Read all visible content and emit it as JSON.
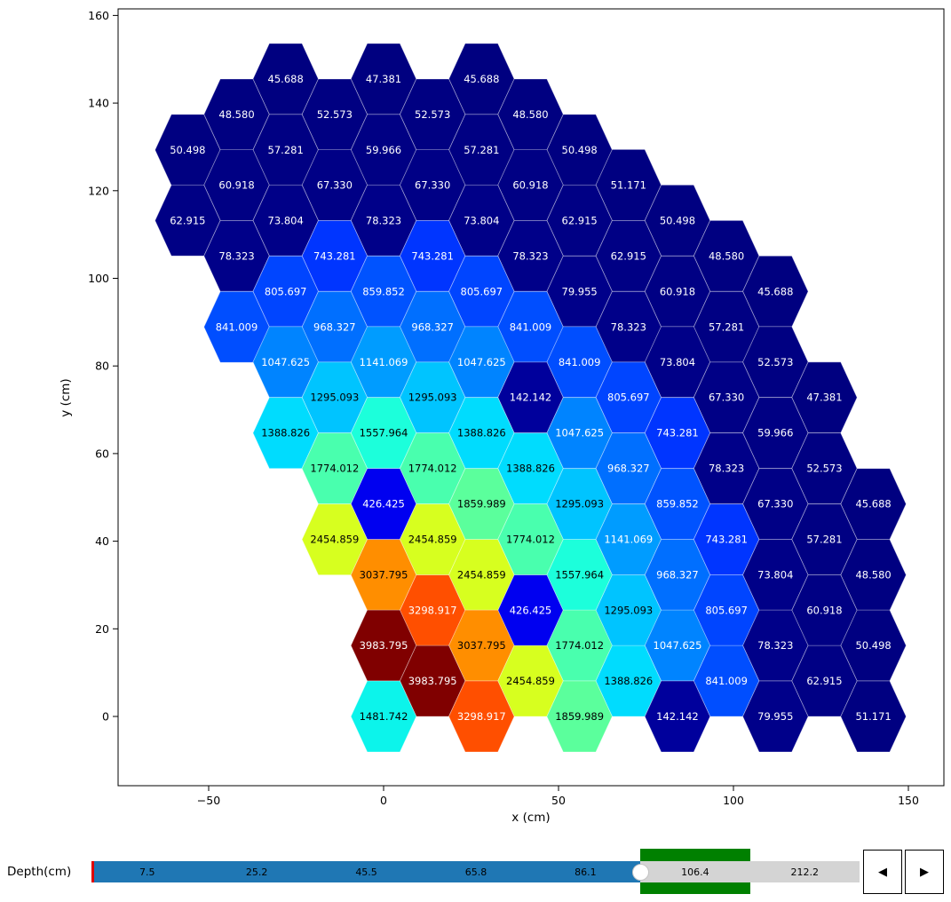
{
  "figure": {
    "xlabel": "x (cm)",
    "ylabel": "y (cm)",
    "x_tick_labels": [
      "−50",
      "0",
      "50",
      "100",
      "150"
    ],
    "x_tick_values": [
      -50,
      0,
      50,
      100,
      150
    ],
    "y_tick_labels": [
      "0",
      "20",
      "40",
      "60",
      "80",
      "100",
      "120",
      "140",
      "160"
    ],
    "y_tick_values": [
      0,
      20,
      40,
      60,
      80,
      100,
      120,
      140,
      160
    ]
  },
  "chart_data": {
    "type": "hexbin",
    "title": "",
    "xlabel": "x (cm)",
    "ylabel": "y (cm)",
    "xlim": [
      -76,
      160.3
    ],
    "ylim": [
      -16.2,
      161.6
    ],
    "grid": false,
    "colormap": "jet",
    "vmin": 45.688,
    "vmax": 3983.795,
    "hex_dx_cm": 14.0,
    "hex_dy_cm": 8.1,
    "palette": {
      "45.688": "#000080",
      "47.381": "#000080",
      "48.580": "#000081",
      "50.498": "#000081",
      "51.171": "#000081",
      "52.573": "#000082",
      "57.281": "#000083",
      "59.966": "#000084",
      "60.918": "#000084",
      "62.915": "#000085",
      "67.330": "#000086",
      "73.804": "#000088",
      "78.323": "#000089",
      "79.955": "#00008a",
      "142.142": "#00009c",
      "426.425": "#0000f0",
      "743.281": "#0035ff",
      "805.697": "#0045ff",
      "841.009": "#004eff",
      "859.852": "#0053ff",
      "968.327": "#006fff",
      "1047.625": "#0084ff",
      "1141.069": "#009cff",
      "1295.093": "#00c4ff",
      "1388.826": "#00dcfe",
      "1481.742": "#0cf4eb",
      "1557.964": "#1cffdb",
      "1774.012": "#49ffae",
      "1859.989": "#5bff9c",
      "2454.859": "#d7ff1f",
      "3037.795": "#ff8e00",
      "3298.917": "#ff4f00",
      "3983.795": "#800000"
    },
    "points": [
      {
        "x": -28,
        "y": 145.5,
        "v": "45.688"
      },
      {
        "x": 0,
        "y": 145.5,
        "v": "47.381"
      },
      {
        "x": 28,
        "y": 145.5,
        "v": "45.688"
      },
      {
        "x": -42,
        "y": 137.4,
        "v": "48.580"
      },
      {
        "x": -14,
        "y": 137.4,
        "v": "52.573"
      },
      {
        "x": 14,
        "y": 137.4,
        "v": "52.573"
      },
      {
        "x": 42,
        "y": 137.4,
        "v": "48.580"
      },
      {
        "x": -56,
        "y": 129.3,
        "v": "50.498"
      },
      {
        "x": -28,
        "y": 129.3,
        "v": "57.281"
      },
      {
        "x": 0,
        "y": 129.3,
        "v": "59.966"
      },
      {
        "x": 28,
        "y": 129.3,
        "v": "57.281"
      },
      {
        "x": 56,
        "y": 129.3,
        "v": "50.498"
      },
      {
        "x": -42,
        "y": 121.3,
        "v": "60.918"
      },
      {
        "x": -14,
        "y": 121.3,
        "v": "67.330"
      },
      {
        "x": 14,
        "y": 121.3,
        "v": "67.330"
      },
      {
        "x": 42,
        "y": 121.3,
        "v": "60.918"
      },
      {
        "x": 70,
        "y": 121.3,
        "v": "51.171"
      },
      {
        "x": -56,
        "y": 113.2,
        "v": "62.915"
      },
      {
        "x": -28,
        "y": 113.2,
        "v": "73.804"
      },
      {
        "x": 0,
        "y": 113.2,
        "v": "78.323"
      },
      {
        "x": 28,
        "y": 113.2,
        "v": "73.804"
      },
      {
        "x": 56,
        "y": 113.2,
        "v": "62.915"
      },
      {
        "x": 84,
        "y": 113.2,
        "v": "50.498"
      },
      {
        "x": -42,
        "y": 105.1,
        "v": "78.323"
      },
      {
        "x": -14,
        "y": 105.1,
        "v": "743.281"
      },
      {
        "x": 14,
        "y": 105.1,
        "v": "743.281"
      },
      {
        "x": 42,
        "y": 105.1,
        "v": "78.323"
      },
      {
        "x": 70,
        "y": 105.1,
        "v": "62.915"
      },
      {
        "x": 98,
        "y": 105.1,
        "v": "48.580"
      },
      {
        "x": -28,
        "y": 97.0,
        "v": "805.697"
      },
      {
        "x": 0,
        "y": 97.0,
        "v": "859.852"
      },
      {
        "x": 28,
        "y": 97.0,
        "v": "805.697"
      },
      {
        "x": 56,
        "y": 97.0,
        "v": "79.955"
      },
      {
        "x": 84,
        "y": 97.0,
        "v": "60.918"
      },
      {
        "x": 112,
        "y": 97.0,
        "v": "45.688"
      },
      {
        "x": -42,
        "y": 88.9,
        "v": "841.009"
      },
      {
        "x": -14,
        "y": 88.9,
        "v": "968.327"
      },
      {
        "x": 14,
        "y": 88.9,
        "v": "968.327"
      },
      {
        "x": 42,
        "y": 88.9,
        "v": "841.009"
      },
      {
        "x": 70,
        "y": 88.9,
        "v": "78.323"
      },
      {
        "x": 98,
        "y": 88.9,
        "v": "57.281"
      },
      {
        "x": -28,
        "y": 80.9,
        "v": "1047.625"
      },
      {
        "x": 0,
        "y": 80.9,
        "v": "1141.069"
      },
      {
        "x": 28,
        "y": 80.9,
        "v": "1047.625"
      },
      {
        "x": 56,
        "y": 80.9,
        "v": "841.009"
      },
      {
        "x": 84,
        "y": 80.9,
        "v": "73.804"
      },
      {
        "x": 112,
        "y": 80.9,
        "v": "52.573"
      },
      {
        "x": -14,
        "y": 72.8,
        "v": "1295.093"
      },
      {
        "x": 14,
        "y": 72.8,
        "v": "1295.093"
      },
      {
        "x": 42,
        "y": 72.8,
        "v": "142.142"
      },
      {
        "x": 70,
        "y": 72.8,
        "v": "805.697"
      },
      {
        "x": 98,
        "y": 72.8,
        "v": "67.330"
      },
      {
        "x": 126,
        "y": 72.8,
        "v": "47.381"
      },
      {
        "x": -28,
        "y": 64.7,
        "v": "1388.826"
      },
      {
        "x": 0,
        "y": 64.7,
        "v": "1557.964"
      },
      {
        "x": 28,
        "y": 64.7,
        "v": "1388.826"
      },
      {
        "x": 56,
        "y": 64.7,
        "v": "1047.625"
      },
      {
        "x": 84,
        "y": 64.7,
        "v": "743.281"
      },
      {
        "x": 112,
        "y": 64.7,
        "v": "59.966"
      },
      {
        "x": -14,
        "y": 56.6,
        "v": "1774.012"
      },
      {
        "x": 14,
        "y": 56.6,
        "v": "1774.012"
      },
      {
        "x": 42,
        "y": 56.6,
        "v": "1388.826"
      },
      {
        "x": 70,
        "y": 56.6,
        "v": "968.327"
      },
      {
        "x": 98,
        "y": 56.6,
        "v": "78.323"
      },
      {
        "x": 126,
        "y": 56.6,
        "v": "52.573"
      },
      {
        "x": 0,
        "y": 48.5,
        "v": "426.425"
      },
      {
        "x": 28,
        "y": 48.5,
        "v": "1859.989"
      },
      {
        "x": 56,
        "y": 48.5,
        "v": "1295.093"
      },
      {
        "x": 84,
        "y": 48.5,
        "v": "859.852"
      },
      {
        "x": 112,
        "y": 48.5,
        "v": "67.330"
      },
      {
        "x": 140,
        "y": 48.5,
        "v": "45.688"
      },
      {
        "x": -14,
        "y": 40.4,
        "v": "2454.859"
      },
      {
        "x": 14,
        "y": 40.4,
        "v": "2454.859"
      },
      {
        "x": 42,
        "y": 40.4,
        "v": "1774.012"
      },
      {
        "x": 70,
        "y": 40.4,
        "v": "1141.069"
      },
      {
        "x": 98,
        "y": 40.4,
        "v": "743.281"
      },
      {
        "x": 126,
        "y": 40.4,
        "v": "57.281"
      },
      {
        "x": 0,
        "y": 32.3,
        "v": "3037.795"
      },
      {
        "x": 28,
        "y": 32.3,
        "v": "2454.859"
      },
      {
        "x": 56,
        "y": 32.3,
        "v": "1557.964"
      },
      {
        "x": 84,
        "y": 32.3,
        "v": "968.327"
      },
      {
        "x": 112,
        "y": 32.3,
        "v": "73.804"
      },
      {
        "x": 140,
        "y": 32.3,
        "v": "48.580"
      },
      {
        "x": 14,
        "y": 24.2,
        "v": "3298.917"
      },
      {
        "x": 42,
        "y": 24.2,
        "v": "426.425"
      },
      {
        "x": 70,
        "y": 24.2,
        "v": "1295.093"
      },
      {
        "x": 98,
        "y": 24.2,
        "v": "805.697"
      },
      {
        "x": 126,
        "y": 24.2,
        "v": "60.918"
      },
      {
        "x": 0,
        "y": 16.2,
        "v": "3983.795"
      },
      {
        "x": 28,
        "y": 16.2,
        "v": "3037.795"
      },
      {
        "x": 56,
        "y": 16.2,
        "v": "1774.012"
      },
      {
        "x": 84,
        "y": 16.2,
        "v": "1047.625"
      },
      {
        "x": 112,
        "y": 16.2,
        "v": "78.323"
      },
      {
        "x": 140,
        "y": 16.2,
        "v": "50.498"
      },
      {
        "x": 14,
        "y": 8.1,
        "v": "3983.795"
      },
      {
        "x": 42,
        "y": 8.1,
        "v": "2454.859"
      },
      {
        "x": 70,
        "y": 8.1,
        "v": "1388.826"
      },
      {
        "x": 98,
        "y": 8.1,
        "v": "841.009"
      },
      {
        "x": 126,
        "y": 8.1,
        "v": "62.915"
      },
      {
        "x": 0,
        "y": 0.0,
        "v": "1481.742"
      },
      {
        "x": 28,
        "y": 0.0,
        "v": "3298.917"
      },
      {
        "x": 56,
        "y": 0.0,
        "v": "1859.989"
      },
      {
        "x": 84,
        "y": 0.0,
        "v": "142.142"
      },
      {
        "x": 112,
        "y": 0.0,
        "v": "79.955"
      },
      {
        "x": 140,
        "y": 0.0,
        "v": "51.171"
      }
    ]
  },
  "slider": {
    "label": "Depth(cm)",
    "options": [
      "7.5",
      "25.2",
      "45.5",
      "65.8",
      "86.1",
      "106.4",
      "212.2"
    ],
    "selected": "106.4",
    "selected_index": 5,
    "colors": {
      "filled": "#1f77b4",
      "empty": "#d4d4d4",
      "highlight": "#008000",
      "init_marker": "#e00000"
    }
  },
  "controls": {
    "prev_label": "◀",
    "next_label": "▶"
  }
}
